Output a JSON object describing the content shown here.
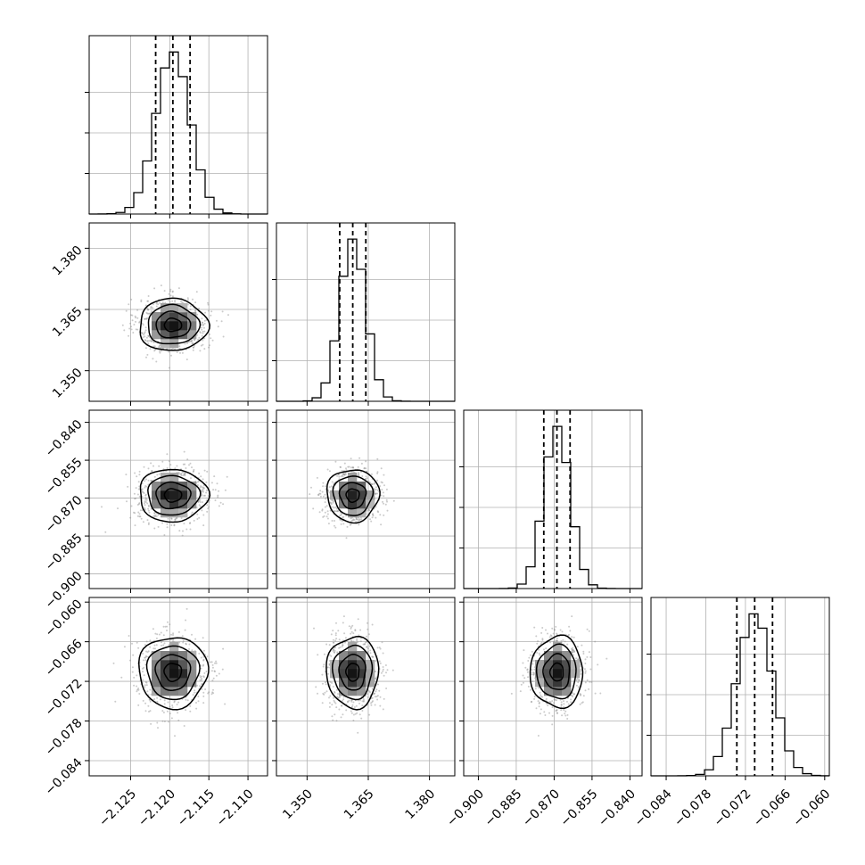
{
  "chart_data": {
    "type": "corner",
    "parameters": [
      {
        "label": "",
        "range": [
          -2.1303,
          -2.1075
        ],
        "ticks": [
          "-2.125",
          "-2.120",
          "-2.115",
          "-2.110"
        ],
        "tick_values": [
          -2.125,
          -2.12,
          -2.115,
          -2.11
        ],
        "median": -2.1196,
        "q16": -2.1218,
        "q84": -2.1174,
        "sigma": 0.0022
      },
      {
        "label": "",
        "range": [
          1.3425,
          1.3862
        ],
        "ticks": [
          "1.350",
          "1.365",
          "1.380"
        ],
        "tick_values": [
          1.35,
          1.365,
          1.38
        ],
        "median": 1.3612,
        "q16": 1.358,
        "q84": 1.3644,
        "sigma": 0.0032
      },
      {
        "label": "",
        "range": [
          -0.9058,
          -0.8352
        ],
        "ticks": [
          "-0.900",
          "-0.885",
          "-0.870",
          "-0.855",
          "-0.840"
        ],
        "tick_values": [
          -0.9,
          -0.885,
          -0.87,
          -0.855,
          -0.84
        ],
        "median": -0.8689,
        "q16": -0.8741,
        "q84": -0.8637,
        "sigma": 0.0052
      },
      {
        "label": "",
        "range": [
          -0.0863,
          -0.0593
        ],
        "ticks": [
          "-0.084",
          "-0.078",
          "-0.072",
          "-0.066",
          "-0.060"
        ],
        "tick_values": [
          -0.084,
          -0.078,
          -0.072,
          -0.066,
          -0.06
        ],
        "median": -0.0706,
        "q16": -0.0733,
        "q84": -0.0679,
        "sigma": 0.0027
      }
    ],
    "bins": 20,
    "contour_levels": [
      0.118,
      0.393,
      0.675,
      0.865
    ],
    "grid": true,
    "quantiles": [
      0.16,
      0.5,
      0.84
    ],
    "line_color": "#000000",
    "density_color": "#000000",
    "grid_color": "#b0b0b0"
  }
}
